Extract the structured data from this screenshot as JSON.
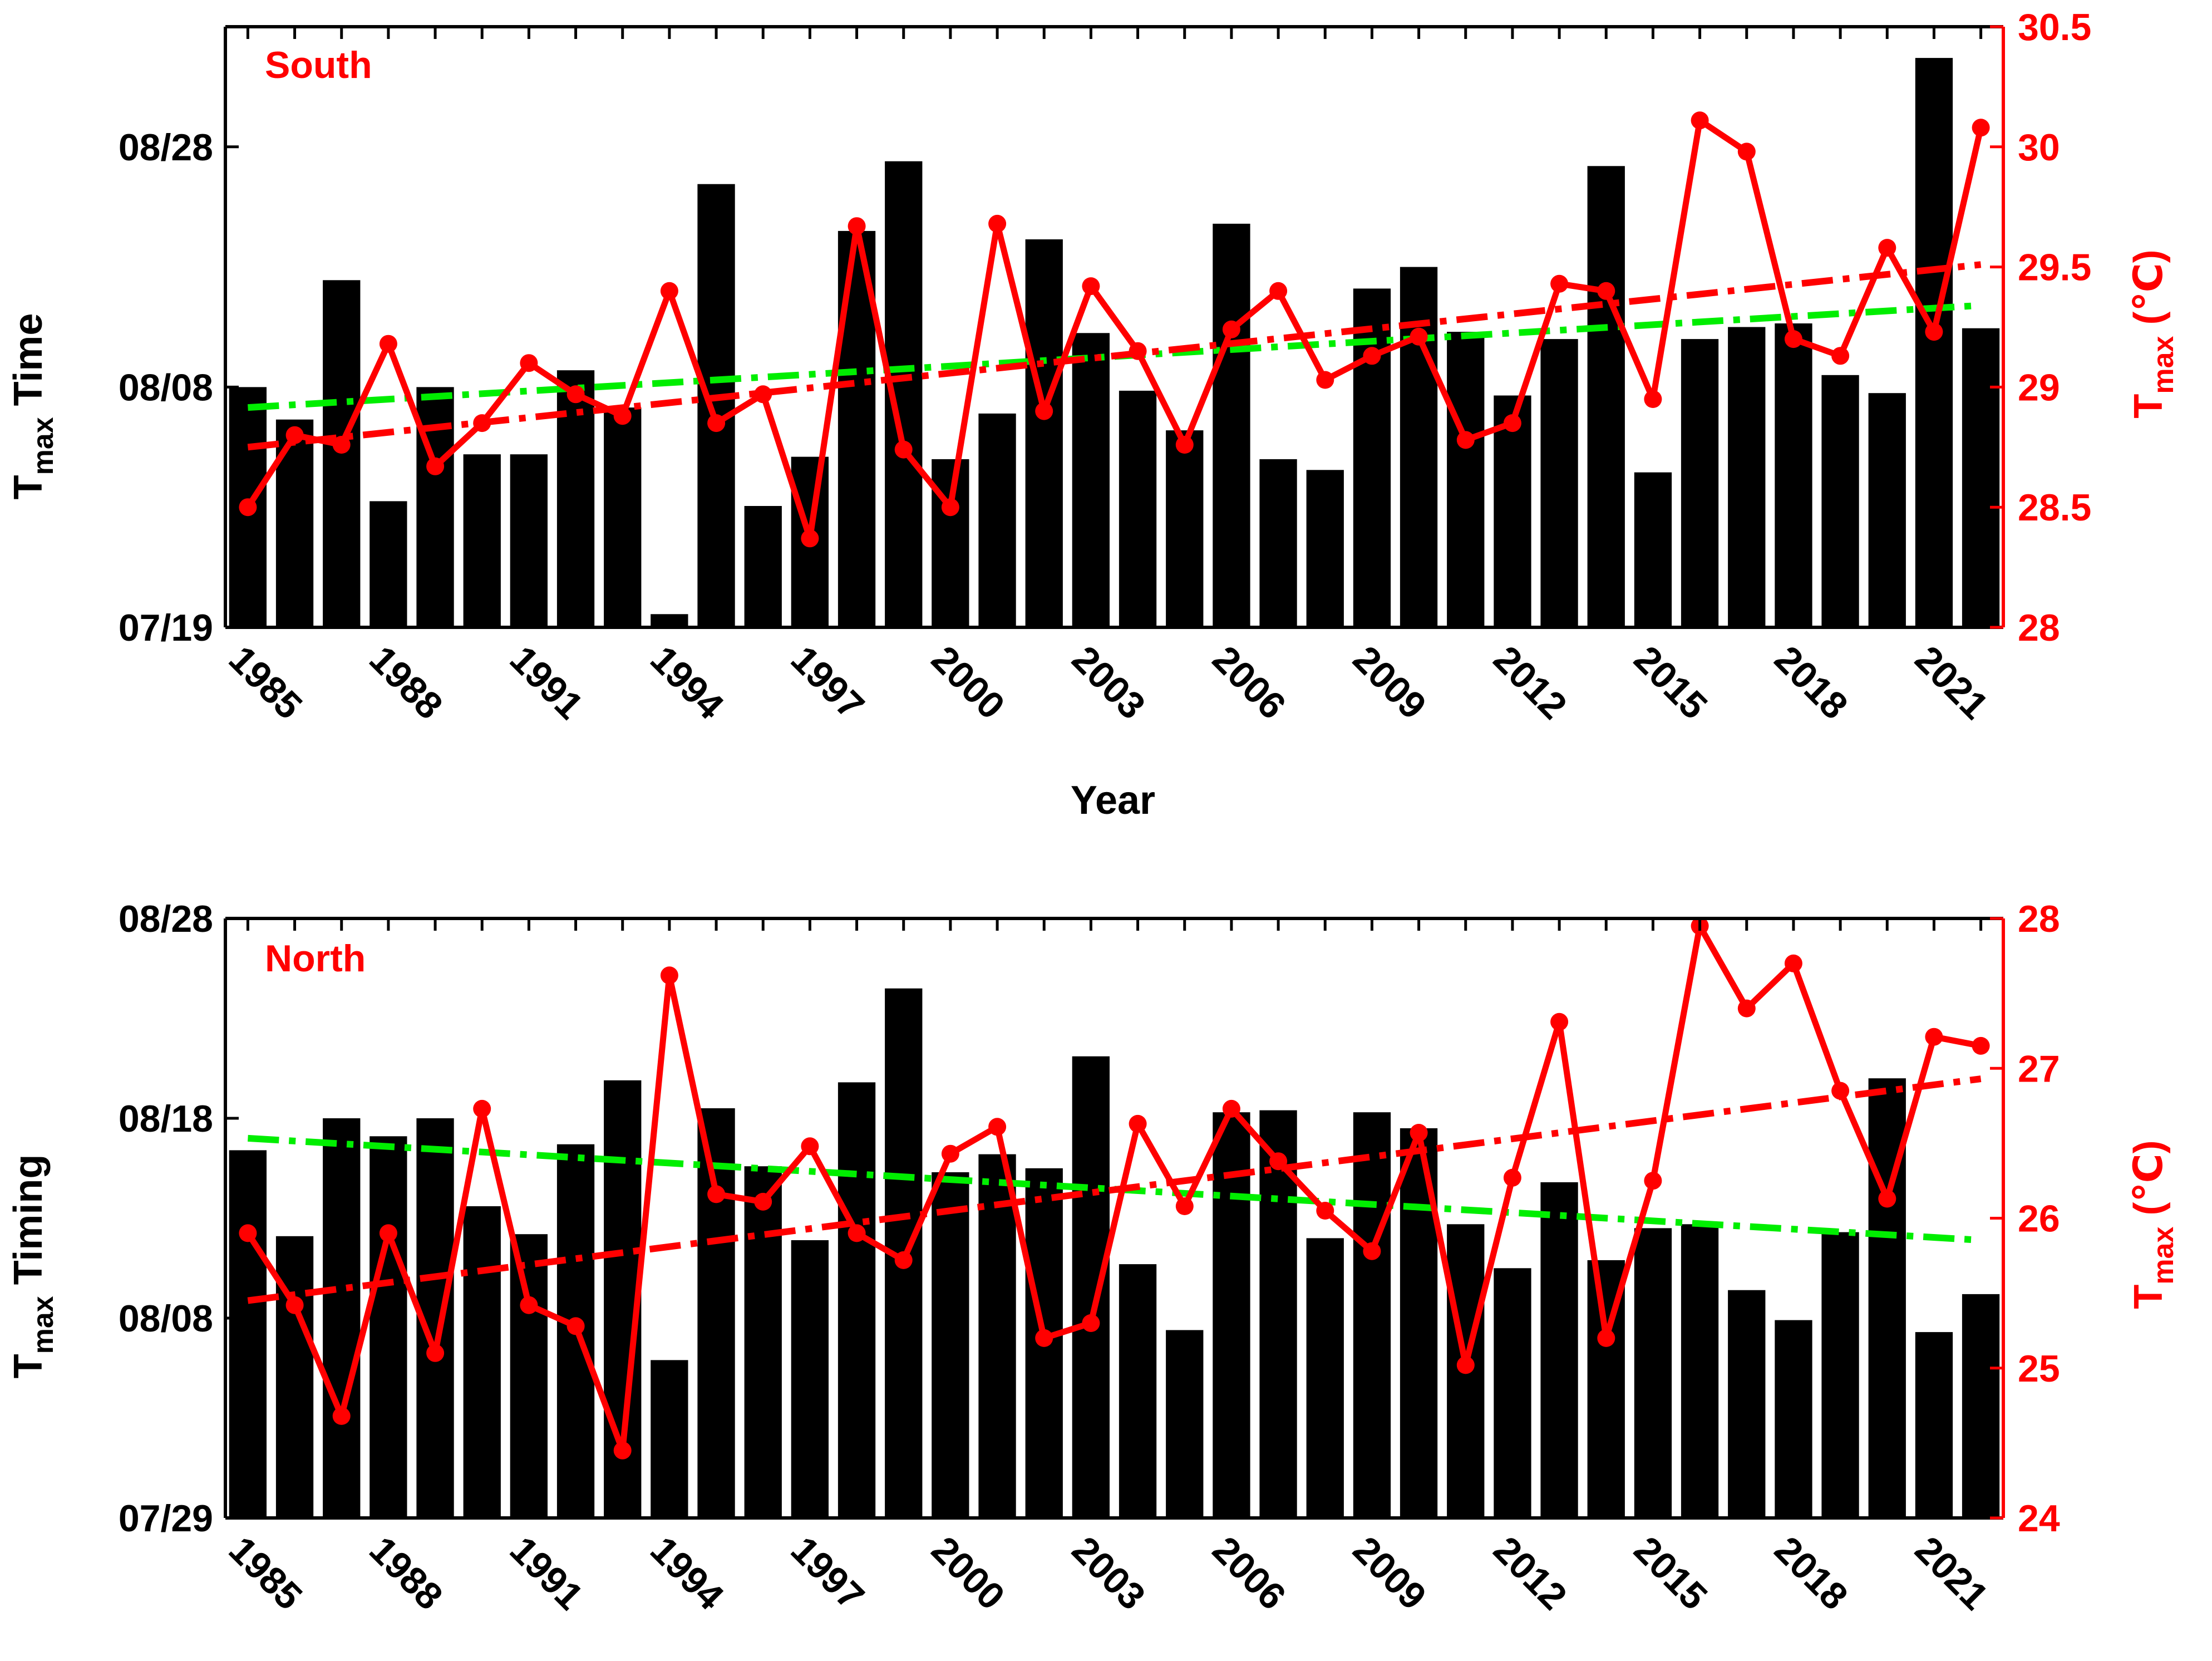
{
  "colors": {
    "bars": "#000000",
    "temperature": "#ff0000",
    "timing_trend": "#00ee00",
    "axis_left": "#000000",
    "axis_right": "#ff0000",
    "background": "#ffffff"
  },
  "chart_data": [
    {
      "id": "south",
      "type": "bar+line",
      "panel_label": "South",
      "xlabel": "Year",
      "ylabel_left_main": "T",
      "ylabel_left_sub": "max",
      "ylabel_left_suffix": " Time",
      "ylabel_right_main": "T",
      "ylabel_right_sub": "max",
      "ylabel_right_suffix": " (℃)",
      "years": [
        1985,
        1986,
        1987,
        1988,
        1989,
        1990,
        1991,
        1992,
        1993,
        1994,
        1995,
        1996,
        1997,
        1998,
        1999,
        2000,
        2001,
        2002,
        2003,
        2004,
        2005,
        2006,
        2007,
        2008,
        2009,
        2010,
        2011,
        2012,
        2013,
        2014,
        2015,
        2016,
        2017,
        2018,
        2019,
        2020,
        2021,
        2022
      ],
      "x_tick_labels": [
        "1985",
        "1988",
        "1991",
        "1994",
        "1997",
        "2000",
        "2003",
        "2006",
        "2009",
        "2012",
        "2015",
        "2018",
        "2021"
      ],
      "bar_timing_day_of_year": [
        220,
        217.3,
        228.9,
        210.5,
        220,
        214.4,
        214.4,
        221.4,
        218.3,
        201.1,
        236.9,
        210.1,
        214.2,
        233,
        238.8,
        214,
        217.8,
        232.3,
        224.5,
        219.7,
        216.4,
        233.6,
        214,
        213.1,
        228.2,
        230,
        224.6,
        219.3,
        224,
        238.4,
        212.9,
        224,
        225,
        225.3,
        221,
        219.5,
        247.4,
        224.9
      ],
      "left_axis": {
        "min": 200,
        "max": 250,
        "ticks": [
          200,
          220,
          240
        ],
        "tick_labels": [
          "07/19",
          "08/08",
          "08/28"
        ]
      },
      "tmax_c": [
        28.5,
        28.8,
        28.76,
        29.18,
        28.67,
        28.85,
        29.1,
        28.97,
        28.88,
        29.4,
        28.85,
        28.97,
        28.37,
        29.67,
        28.74,
        28.5,
        29.68,
        28.9,
        29.42,
        29.15,
        28.76,
        29.24,
        29.4,
        29.03,
        29.13,
        29.21,
        28.78,
        28.85,
        29.43,
        29.4,
        28.95,
        30.11,
        29.98,
        29.2,
        29.13,
        29.58,
        29.23,
        30.08
      ],
      "right_axis": {
        "min": 28,
        "max": 30.5,
        "ticks": [
          28,
          28.5,
          29,
          29.5,
          30,
          30.5
        ],
        "tick_labels": [
          "28",
          "28.5",
          "29",
          "29.5",
          "30",
          "30.5"
        ]
      },
      "timing_trend": {
        "start_year": 1985,
        "start_value": 218.3,
        "end_year": 2022,
        "end_value": 226.8
      },
      "temperature_trend": {
        "start_year": 1985,
        "start_value": 28.75,
        "end_year": 2022,
        "end_value": 29.51
      }
    },
    {
      "id": "north",
      "type": "bar+line",
      "panel_label": "North",
      "xlabel": "",
      "ylabel_left_main": "T",
      "ylabel_left_sub": "max",
      "ylabel_left_suffix": " Timing",
      "ylabel_right_main": "T",
      "ylabel_right_sub": "max",
      "ylabel_right_suffix": " (℃)",
      "years": [
        1985,
        1986,
        1987,
        1988,
        1989,
        1990,
        1991,
        1992,
        1993,
        1994,
        1995,
        1996,
        1997,
        1998,
        1999,
        2000,
        2001,
        2002,
        2003,
        2004,
        2005,
        2006,
        2007,
        2008,
        2009,
        2010,
        2011,
        2012,
        2013,
        2014,
        2015,
        2016,
        2017,
        2018,
        2019,
        2020,
        2021,
        2022
      ],
      "x_tick_labels": [
        "1985",
        "1988",
        "1991",
        "1994",
        "1997",
        "2000",
        "2003",
        "2006",
        "2009",
        "2012",
        "2015",
        "2018",
        "2021"
      ],
      "bar_timing_day_of_year": [
        228.4,
        224.1,
        230,
        229.1,
        230,
        225.6,
        224.2,
        228.7,
        231.9,
        217.9,
        230.5,
        227.6,
        223.9,
        231.8,
        236.5,
        227.3,
        228.2,
        227.5,
        233.1,
        222.7,
        219.4,
        230.3,
        230.4,
        224,
        230.3,
        229.5,
        224.7,
        222.5,
        226.8,
        222.9,
        224.5,
        224.7,
        221.4,
        219.9,
        224.3,
        232,
        219.3,
        221.2
      ],
      "left_axis": {
        "min": 210,
        "max": 240,
        "ticks": [
          210,
          220,
          230,
          240
        ],
        "tick_labels": [
          "07/29",
          "08/08",
          "08/18",
          "08/28"
        ]
      },
      "tmax_c": [
        25.9,
        25.42,
        24.68,
        25.9,
        25.1,
        26.73,
        25.42,
        25.28,
        24.45,
        27.62,
        26.16,
        26.11,
        26.48,
        25.9,
        25.72,
        26.43,
        26.61,
        25.2,
        25.3,
        26.63,
        26.08,
        26.73,
        26.38,
        26.05,
        25.78,
        26.57,
        25.02,
        26.27,
        27.31,
        25.2,
        26.25,
        27.95,
        27.4,
        27.7,
        26.85,
        26.13,
        27.21,
        27.15
      ],
      "right_axis": {
        "min": 24,
        "max": 28,
        "ticks": [
          24,
          25,
          26,
          27,
          28
        ],
        "tick_labels": [
          "24",
          "25",
          "26",
          "27",
          "28"
        ]
      },
      "timing_trend": {
        "start_year": 1985,
        "start_value": 229.0,
        "end_year": 2022,
        "end_value": 223.9
      },
      "temperature_trend": {
        "start_year": 1985,
        "start_value": 25.45,
        "end_year": 2022,
        "end_value": 26.93
      }
    }
  ]
}
